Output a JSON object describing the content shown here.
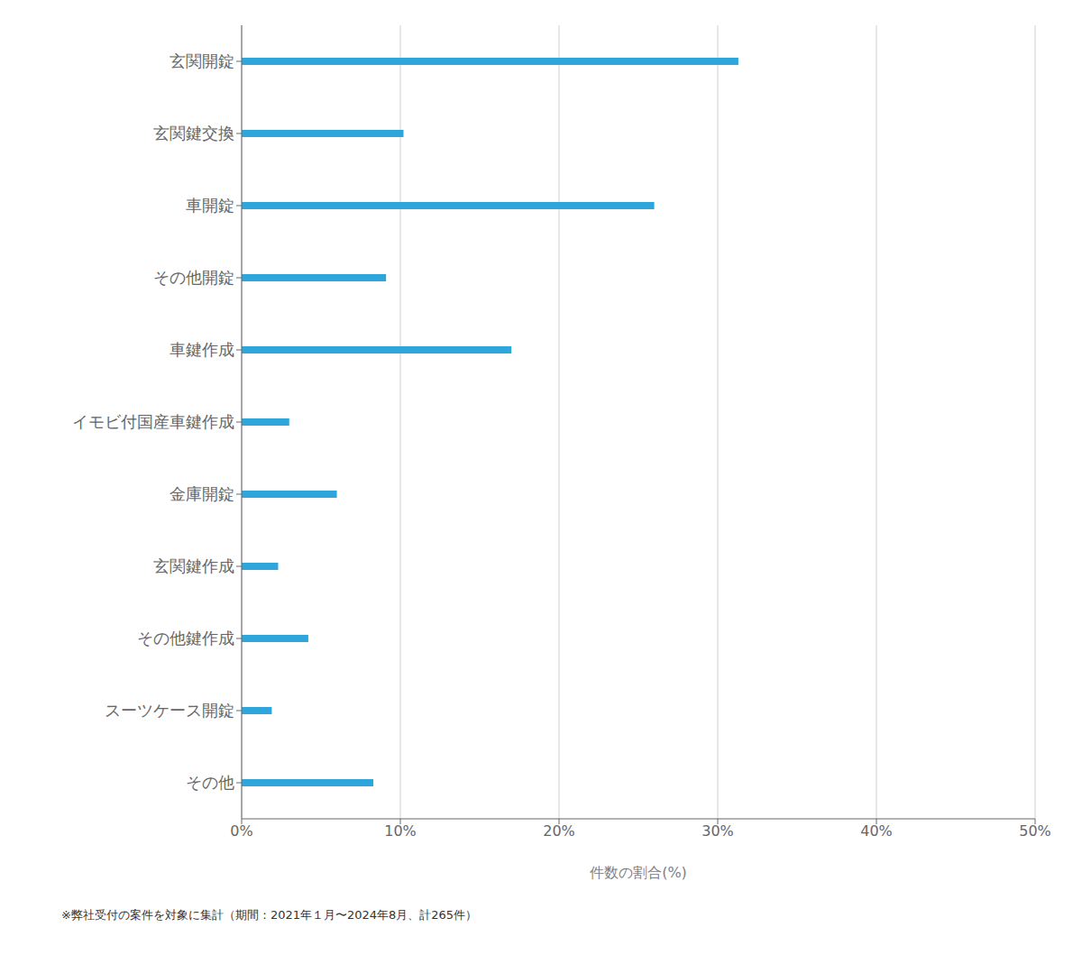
{
  "chart_data": {
    "type": "bar",
    "orientation": "horizontal",
    "categories": [
      "玄関開錠",
      "玄関鍵交換",
      "車開錠",
      "その他開錠",
      "車鍵作成",
      "イモビ付国産車鍵作成",
      "金庫開錠",
      "玄関鍵作成",
      "その他鍵作成",
      "スーツケース開錠",
      "その他"
    ],
    "values": [
      31.3,
      10.2,
      26.0,
      9.1,
      17.0,
      3.0,
      6.0,
      2.3,
      4.2,
      1.9,
      8.3
    ],
    "color": "#2EA6DC",
    "xlabel": "件数の割合(%)",
    "xlim": [
      0,
      50
    ],
    "xticks": [
      {
        "value": 0,
        "label": "0%"
      },
      {
        "value": 10,
        "label": "10%"
      },
      {
        "value": 20,
        "label": "20%"
      },
      {
        "value": 30,
        "label": "30%"
      },
      {
        "value": 40,
        "label": "40%"
      },
      {
        "value": 50,
        "label": "50%"
      }
    ],
    "grid": true,
    "annotations": [
      "※弊社受付の案件を対象に集計（期間：2021年１月〜2024年8月、計265件）"
    ]
  }
}
